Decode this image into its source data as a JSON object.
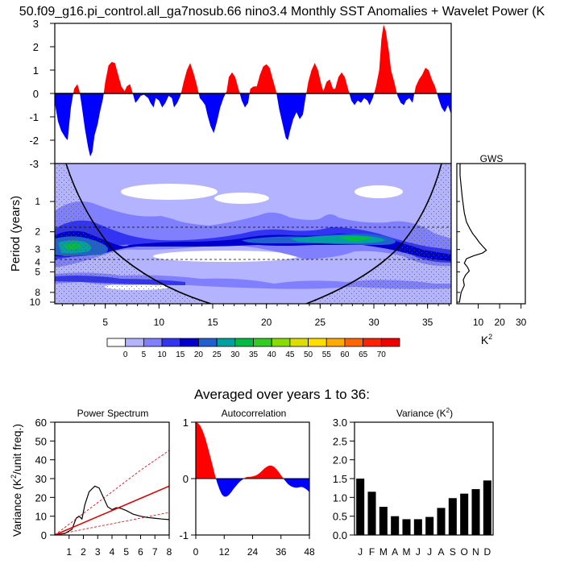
{
  "title": "50.f09_g16.pi_control.all_ga7nosub.66 nino3.4 Monthly SST Anomalies + Wavelet Power (K",
  "ylabel_period": "Period (years)",
  "gws_title": "GWS",
  "gws_xlabel": "K",
  "gws_xlabel_sup": "2",
  "averaged_text": "Averaged over years 1 to 36:",
  "colors": {
    "positive": "#ff0000",
    "negative": "#0000ff"
  },
  "chart_data": [
    {
      "type": "area",
      "name": "sst-anomaly",
      "x_range": [
        0.3,
        37.2
      ],
      "ylim": [
        -3,
        3
      ],
      "yticks": [
        "-3",
        "-2",
        "-1",
        "0",
        "1",
        "2",
        "3"
      ],
      "points": [
        [
          0.3,
          -0.4
        ],
        [
          0.6,
          -1.2
        ],
        [
          0.9,
          -1.6
        ],
        [
          1.3,
          -1.9
        ],
        [
          1.5,
          -2.0
        ],
        [
          1.8,
          -0.6
        ],
        [
          2.1,
          0.2
        ],
        [
          2.4,
          0.4
        ],
        [
          2.6,
          0.1
        ],
        [
          2.8,
          -0.5
        ],
        [
          3.1,
          -1.5
        ],
        [
          3.4,
          -2.3
        ],
        [
          3.6,
          -2.7
        ],
        [
          3.8,
          -2.5
        ],
        [
          4.0,
          -1.8
        ],
        [
          4.3,
          -1.3
        ],
        [
          4.5,
          -0.8
        ],
        [
          4.8,
          -0.2
        ],
        [
          5.0,
          0.5
        ],
        [
          5.3,
          1.2
        ],
        [
          5.6,
          1.35
        ],
        [
          5.9,
          1.3
        ],
        [
          6.2,
          0.8
        ],
        [
          6.5,
          0.3
        ],
        [
          6.8,
          0.1
        ],
        [
          7.0,
          0.3
        ],
        [
          7.3,
          0.4
        ],
        [
          7.5,
          0.1
        ],
        [
          7.8,
          -0.4
        ],
        [
          8.0,
          -0.3
        ],
        [
          8.3,
          -0.1
        ],
        [
          8.6,
          -0.05
        ],
        [
          9.0,
          -0.2
        ],
        [
          9.2,
          -0.4
        ],
        [
          9.5,
          -0.6
        ],
        [
          9.7,
          -0.2
        ],
        [
          10.0,
          -0.3
        ],
        [
          10.3,
          -0.6
        ],
        [
          10.6,
          -0.4
        ],
        [
          10.9,
          -0.1
        ],
        [
          11.2,
          -0.2
        ],
        [
          11.4,
          -0.6
        ],
        [
          11.7,
          -0.4
        ],
        [
          12.0,
          -0.1
        ],
        [
          12.3,
          0.5
        ],
        [
          12.6,
          1.0
        ],
        [
          12.9,
          1.3
        ],
        [
          13.2,
          0.9
        ],
        [
          13.5,
          0.4
        ],
        [
          13.8,
          -0.2
        ],
        [
          14.0,
          -0.3
        ],
        [
          14.3,
          -0.5
        ],
        [
          14.5,
          -0.9
        ],
        [
          14.8,
          -1.4
        ],
        [
          15.1,
          -1.7
        ],
        [
          15.4,
          -1.2
        ],
        [
          15.7,
          -0.6
        ],
        [
          16.0,
          -0.2
        ],
        [
          16.3,
          0.1
        ],
        [
          16.5,
          0.7
        ],
        [
          16.8,
          0.9
        ],
        [
          17.1,
          0.7
        ],
        [
          17.4,
          0.2
        ],
        [
          17.7,
          -0.3
        ],
        [
          18.0,
          -0.6
        ],
        [
          18.3,
          -0.4
        ],
        [
          18.5,
          0.2
        ],
        [
          18.8,
          0.3
        ],
        [
          19.1,
          0.3
        ],
        [
          19.4,
          0.8
        ],
        [
          19.7,
          1.15
        ],
        [
          20.0,
          1.25
        ],
        [
          20.3,
          1.1
        ],
        [
          20.6,
          0.6
        ],
        [
          20.9,
          0.1
        ],
        [
          21.2,
          -0.7
        ],
        [
          21.5,
          -1.3
        ],
        [
          21.8,
          -1.9
        ],
        [
          22.0,
          -2.0
        ],
        [
          22.2,
          -1.6
        ],
        [
          22.5,
          -1.1
        ],
        [
          22.8,
          -0.8
        ],
        [
          23.1,
          -1.1
        ],
        [
          23.4,
          -0.9
        ],
        [
          23.6,
          -0.3
        ],
        [
          23.9,
          0.5
        ],
        [
          24.2,
          1.0
        ],
        [
          24.5,
          1.3
        ],
        [
          24.8,
          1.0
        ],
        [
          25.1,
          0.4
        ],
        [
          25.3,
          0.1
        ],
        [
          25.6,
          0.5
        ],
        [
          25.9,
          0.6
        ],
        [
          26.2,
          0.2
        ],
        [
          26.4,
          0.2
        ],
        [
          26.7,
          0.7
        ],
        [
          27.0,
          0.9
        ],
        [
          27.3,
          0.7
        ],
        [
          27.6,
          0.2
        ],
        [
          27.9,
          -0.3
        ],
        [
          28.2,
          -0.5
        ],
        [
          28.5,
          -0.3
        ],
        [
          28.8,
          -0.4
        ],
        [
          29.1,
          -0.2
        ],
        [
          29.4,
          -0.3
        ],
        [
          29.6,
          -0.5
        ],
        [
          29.9,
          -0.2
        ],
        [
          30.2,
          0.3
        ],
        [
          30.5,
          1.0
        ],
        [
          30.7,
          2.3
        ],
        [
          30.9,
          2.95
        ],
        [
          31.1,
          2.7
        ],
        [
          31.4,
          1.8
        ],
        [
          31.6,
          1.0
        ],
        [
          31.9,
          0.5
        ],
        [
          32.2,
          -0.1
        ],
        [
          32.5,
          -0.4
        ],
        [
          32.8,
          -0.5
        ],
        [
          33.0,
          -0.3
        ],
        [
          33.3,
          -0.2
        ],
        [
          33.6,
          -0.4
        ],
        [
          33.9,
          0.3
        ],
        [
          34.2,
          0.6
        ],
        [
          34.5,
          0.8
        ],
        [
          34.8,
          1.1
        ],
        [
          35.1,
          1.0
        ],
        [
          35.4,
          0.6
        ],
        [
          35.7,
          0.3
        ],
        [
          36.0,
          -0.2
        ],
        [
          36.3,
          -0.6
        ],
        [
          36.6,
          -0.8
        ],
        [
          36.9,
          -0.5
        ],
        [
          37.2,
          -0.9
        ]
      ]
    },
    {
      "type": "heatmap",
      "name": "wavelet-power",
      "ylabel": "Period (years)",
      "xlim": [
        0.3,
        37.2
      ],
      "xticks": [
        "5",
        "10",
        "15",
        "20",
        "25",
        "30",
        "35"
      ],
      "yticks": [
        "1",
        "2",
        "3",
        "4",
        "5",
        "8",
        "10"
      ],
      "colorbar": {
        "labels": [
          "0",
          "5",
          "10",
          "15",
          "20",
          "25",
          "30",
          "35",
          "40",
          "45",
          "50",
          "55",
          "60",
          "65",
          "70"
        ],
        "colors": [
          "#ffffff",
          "#b3b3ff",
          "#8080ff",
          "#3333f2",
          "#0000cc",
          "#2060d0",
          "#00a0a0",
          "#00bb44",
          "#33cc22",
          "#88dd00",
          "#dddd00",
          "#ffdd00",
          "#ffaa00",
          "#ff6600",
          "#ff2200",
          "#ee0000"
        ]
      },
      "reference_periods": [
        2,
        4
      ]
    },
    {
      "type": "line",
      "name": "global-wavelet-spectrum",
      "title": "GWS",
      "xlabel": "K²",
      "xticks": [
        "10",
        "20",
        "30"
      ],
      "xlim": [
        0,
        32
      ],
      "points": [
        [
          1.5,
          0.55
        ],
        [
          2.5,
          0.9
        ],
        [
          3.5,
          1.3
        ],
        [
          4.5,
          1.6
        ],
        [
          6.0,
          1.85
        ],
        [
          7.5,
          2.1
        ],
        [
          9.0,
          2.3
        ],
        [
          10.5,
          2.55
        ],
        [
          12.5,
          2.85
        ],
        [
          13.8,
          3.05
        ],
        [
          12.0,
          3.25
        ],
        [
          8.0,
          3.45
        ],
        [
          4.5,
          3.7
        ],
        [
          3.5,
          4.1
        ],
        [
          5.0,
          4.5
        ],
        [
          5.8,
          4.9
        ],
        [
          4.0,
          5.4
        ],
        [
          3.0,
          6.0
        ],
        [
          3.5,
          6.8
        ],
        [
          2.0,
          8.0
        ],
        [
          1.2,
          10.0
        ]
      ]
    },
    {
      "type": "line",
      "title": "Power Spectrum",
      "ylabel": "Variance (K²/unit freq.)",
      "xticks": [
        "1",
        "2",
        "3",
        "4",
        "5",
        "6",
        "7",
        "8"
      ],
      "yticks": [
        "0",
        "10",
        "20",
        "30",
        "40",
        "50",
        "60"
      ],
      "xlim": [
        0,
        8
      ],
      "ylim": [
        0,
        60
      ],
      "series": [
        {
          "style": "black",
          "points": [
            [
              0,
              0.2
            ],
            [
              0.7,
              0.8
            ],
            [
              1.2,
              3
            ],
            [
              1.5,
              9
            ],
            [
              1.7,
              10
            ],
            [
              1.9,
              8.5
            ],
            [
              2.1,
              16
            ],
            [
              2.4,
              23
            ],
            [
              2.8,
              26
            ],
            [
              3.1,
              25
            ],
            [
              3.4,
              20
            ],
            [
              3.7,
              15
            ],
            [
              4.0,
              13.5
            ],
            [
              4.3,
              14.5
            ],
            [
              4.6,
              14.2
            ],
            [
              5.0,
              13
            ],
            [
              5.5,
              11
            ],
            [
              6.0,
              10
            ],
            [
              6.5,
              9.3
            ],
            [
              7.0,
              8.9
            ],
            [
              7.5,
              8.5
            ],
            [
              8.0,
              8.2
            ]
          ]
        },
        {
          "style": "red-solid",
          "points": [
            [
              0,
              0
            ],
            [
              2,
              6.5
            ],
            [
              4,
              13
            ],
            [
              6,
              19.5
            ],
            [
              8,
              26
            ]
          ]
        },
        {
          "style": "red-dashed",
          "points": [
            [
              0,
              0
            ],
            [
              2,
              11.5
            ],
            [
              4,
              23
            ],
            [
              6,
              34.5
            ],
            [
              8,
              45
            ]
          ]
        },
        {
          "style": "red-dashed",
          "points": [
            [
              0,
              0
            ],
            [
              2,
              3
            ],
            [
              4,
              6
            ],
            [
              6,
              9
            ],
            [
              8,
              12
            ]
          ]
        }
      ]
    },
    {
      "type": "area",
      "title": "Autocorrelation",
      "xticks": [
        "0",
        "12",
        "24",
        "36",
        "48"
      ],
      "yticks": [
        "-1",
        "0",
        "1"
      ],
      "xlim": [
        0,
        48
      ],
      "ylim": [
        -1,
        1
      ],
      "points": [
        [
          0,
          1
        ],
        [
          1,
          0.98
        ],
        [
          2,
          0.93
        ],
        [
          3,
          0.84
        ],
        [
          4,
          0.72
        ],
        [
          5,
          0.57
        ],
        [
          6,
          0.41
        ],
        [
          7,
          0.25
        ],
        [
          8,
          0.08
        ],
        [
          9,
          -0.07
        ],
        [
          10,
          -0.19
        ],
        [
          11,
          -0.28
        ],
        [
          12,
          -0.32
        ],
        [
          13,
          -0.32
        ],
        [
          14,
          -0.29
        ],
        [
          15,
          -0.24
        ],
        [
          16,
          -0.18
        ],
        [
          17,
          -0.13
        ],
        [
          18,
          -0.08
        ],
        [
          19,
          -0.04
        ],
        [
          20,
          -0.01
        ],
        [
          21,
          0.02
        ],
        [
          22,
          0.03
        ],
        [
          23,
          0.03
        ],
        [
          24,
          0.04
        ],
        [
          25,
          0.05
        ],
        [
          26,
          0.07
        ],
        [
          27,
          0.1
        ],
        [
          28,
          0.14
        ],
        [
          29,
          0.18
        ],
        [
          30,
          0.21
        ],
        [
          31,
          0.23
        ],
        [
          32,
          0.23
        ],
        [
          33,
          0.21
        ],
        [
          34,
          0.17
        ],
        [
          35,
          0.12
        ],
        [
          36,
          0.06
        ],
        [
          37,
          0
        ],
        [
          38,
          -0.05
        ],
        [
          39,
          -0.1
        ],
        [
          40,
          -0.13
        ],
        [
          41,
          -0.15
        ],
        [
          42,
          -0.16
        ],
        [
          43,
          -0.16
        ],
        [
          44,
          -0.15
        ],
        [
          45,
          -0.15
        ],
        [
          46,
          -0.17
        ],
        [
          47,
          -0.2
        ],
        [
          48,
          -0.24
        ]
      ]
    },
    {
      "type": "bar",
      "title": "Variance (K",
      "title_sup": "2",
      "title_end": ")",
      "categories": [
        "J",
        "F",
        "M",
        "A",
        "M",
        "J",
        "J",
        "A",
        "S",
        "O",
        "N",
        "D"
      ],
      "values": [
        1.5,
        1.15,
        0.75,
        0.5,
        0.42,
        0.42,
        0.48,
        0.72,
        0.98,
        1.1,
        1.22,
        1.45
      ],
      "yticks": [
        "0.0",
        "0.5",
        "1.0",
        "1.5",
        "2.0",
        "2.5",
        "3.0"
      ],
      "ylim": [
        0,
        3
      ]
    }
  ]
}
